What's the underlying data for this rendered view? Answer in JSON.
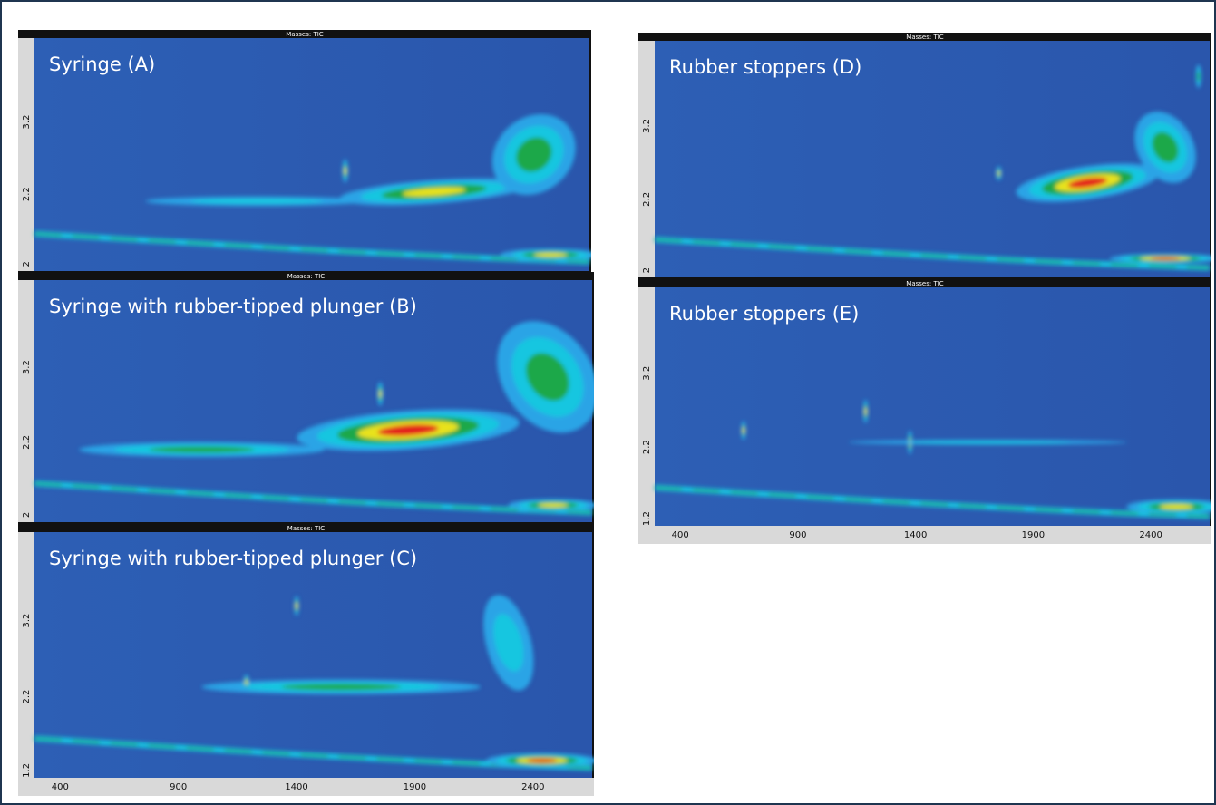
{
  "panels": [
    {
      "header": "Masses: TIC",
      "label": "Syringe (A)",
      "yticks": [
        "3.2",
        "2.2",
        "2"
      ]
    },
    {
      "header": "Masses: TIC",
      "label": "Syringe with rubber-tipped plunger (B)",
      "yticks": [
        "3.2",
        "2.2",
        "2"
      ]
    },
    {
      "header": "Masses: TIC",
      "label": "Syringe with rubber-tipped plunger (C)",
      "yticks": [
        "3.2",
        "2.2",
        "1.2"
      ],
      "xticks": [
        "400",
        "900",
        "1400",
        "1900",
        "2400"
      ]
    },
    {
      "header": "Masses: TIC",
      "label": "Rubber stoppers (D)",
      "yticks": [
        "3.2",
        "2.2",
        "2"
      ]
    },
    {
      "header": "Masses: TIC",
      "label": "Rubber stoppers (E)",
      "yticks": [
        "3.2",
        "2.2",
        "1.2"
      ],
      "xticks": [
        "400",
        "900",
        "1400",
        "1900",
        "2400"
      ]
    }
  ]
}
